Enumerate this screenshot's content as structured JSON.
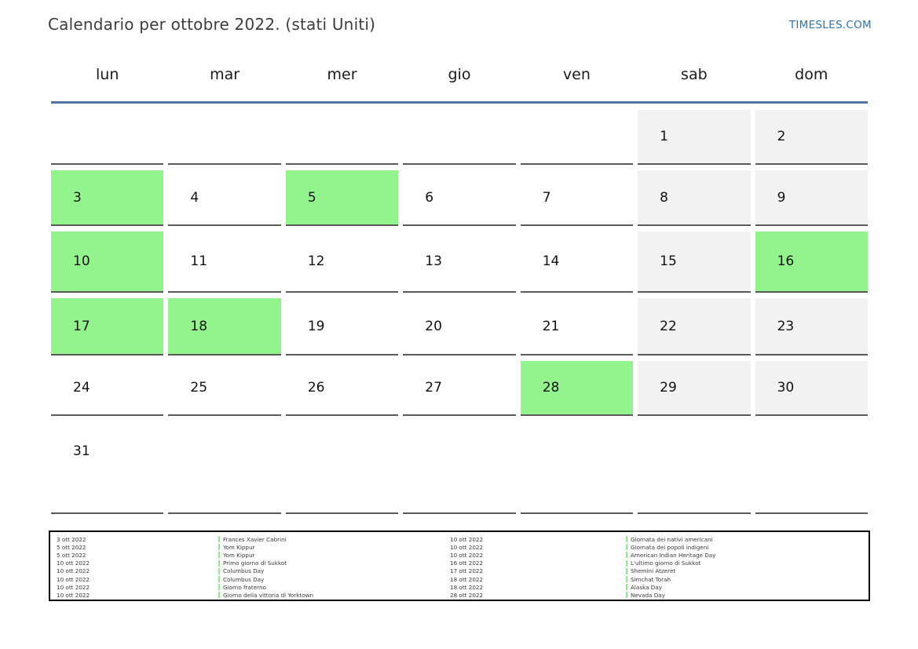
{
  "page": {
    "title": "Calendario per ottobre 2022. (stati Uniti)",
    "brand": "TIMESLES.COM"
  },
  "colors": {
    "holiday_green": "#93f48e",
    "weekend_gray": "#f2f2f2",
    "rule_blue": "#53749c",
    "cell_border": "#5a5a5a",
    "brand_blue": "#2c74b3",
    "legend_marker_green": "#8fe98f"
  },
  "calendar": {
    "weekdays": [
      "lun",
      "mar",
      "mer",
      "gio",
      "ven",
      "sab",
      "dom"
    ],
    "weeks": [
      [
        {
          "day": "",
          "type": "empty"
        },
        {
          "day": "",
          "type": "empty"
        },
        {
          "day": "",
          "type": "empty"
        },
        {
          "day": "",
          "type": "empty"
        },
        {
          "day": "",
          "type": "empty"
        },
        {
          "day": "1",
          "type": "weekend"
        },
        {
          "day": "2",
          "type": "weekend"
        }
      ],
      [
        {
          "day": "3",
          "type": "holiday"
        },
        {
          "day": "4",
          "type": "normal"
        },
        {
          "day": "5",
          "type": "holiday"
        },
        {
          "day": "6",
          "type": "normal"
        },
        {
          "day": "7",
          "type": "normal"
        },
        {
          "day": "8",
          "type": "weekend"
        },
        {
          "day": "9",
          "type": "weekend"
        }
      ],
      [
        {
          "day": "10",
          "type": "holiday"
        },
        {
          "day": "11",
          "type": "normal"
        },
        {
          "day": "12",
          "type": "normal"
        },
        {
          "day": "13",
          "type": "normal"
        },
        {
          "day": "14",
          "type": "normal"
        },
        {
          "day": "15",
          "type": "weekend"
        },
        {
          "day": "16",
          "type": "holiday"
        }
      ],
      [
        {
          "day": "17",
          "type": "holiday"
        },
        {
          "day": "18",
          "type": "holiday"
        },
        {
          "day": "19",
          "type": "normal"
        },
        {
          "day": "20",
          "type": "normal"
        },
        {
          "day": "21",
          "type": "normal"
        },
        {
          "day": "22",
          "type": "weekend"
        },
        {
          "day": "23",
          "type": "weekend"
        }
      ],
      [
        {
          "day": "24",
          "type": "normal"
        },
        {
          "day": "25",
          "type": "normal"
        },
        {
          "day": "26",
          "type": "normal"
        },
        {
          "day": "27",
          "type": "normal"
        },
        {
          "day": "28",
          "type": "holiday"
        },
        {
          "day": "29",
          "type": "weekend"
        },
        {
          "day": "30",
          "type": "weekend"
        }
      ],
      [
        {
          "day": "31",
          "type": "normal"
        },
        {
          "day": "",
          "type": "empty"
        },
        {
          "day": "",
          "type": "empty"
        },
        {
          "day": "",
          "type": "empty"
        },
        {
          "day": "",
          "type": "empty"
        },
        {
          "day": "",
          "type": "empty"
        },
        {
          "day": "",
          "type": "empty"
        }
      ]
    ]
  },
  "legend": {
    "columns": [
      {
        "entries": [
          {
            "date": "3 ott 2022",
            "event": "Frances Xavier Cabrini"
          },
          {
            "date": "5 ott 2022",
            "event": "Yom Kippur"
          },
          {
            "date": "5 ott 2022",
            "event": "Yom Kippur"
          },
          {
            "date": "10 ott 2022",
            "event": "Primo giorno di Sukkot"
          },
          {
            "date": "10 ott 2022",
            "event": "Columbus Day"
          },
          {
            "date": "10 ott 2022",
            "event": "Columbus Day"
          },
          {
            "date": "10 ott 2022",
            "event": "Giorno fraterno"
          },
          {
            "date": "10 ott 2022",
            "event": "Giorno della vittoria di Yorktown"
          }
        ]
      },
      {
        "entries": [
          {
            "date": "10 ott 2022",
            "event": "Giornata dei nativi americani"
          },
          {
            "date": "10 ott 2022",
            "event": "Giornata dei popoli indigeni"
          },
          {
            "date": "10 ott 2022",
            "event": "American Indian Heritage Day"
          },
          {
            "date": "16 ott 2022",
            "event": "L'ultimo giorno di Sukkot"
          },
          {
            "date": "17 ott 2022",
            "event": "Shemini Atzeret"
          },
          {
            "date": "18 ott 2022",
            "event": "Simchat Torah"
          },
          {
            "date": "18 ott 2022",
            "event": "Alaska Day"
          },
          {
            "date": "28 ott 2022",
            "event": "Nevada Day"
          }
        ]
      }
    ]
  }
}
